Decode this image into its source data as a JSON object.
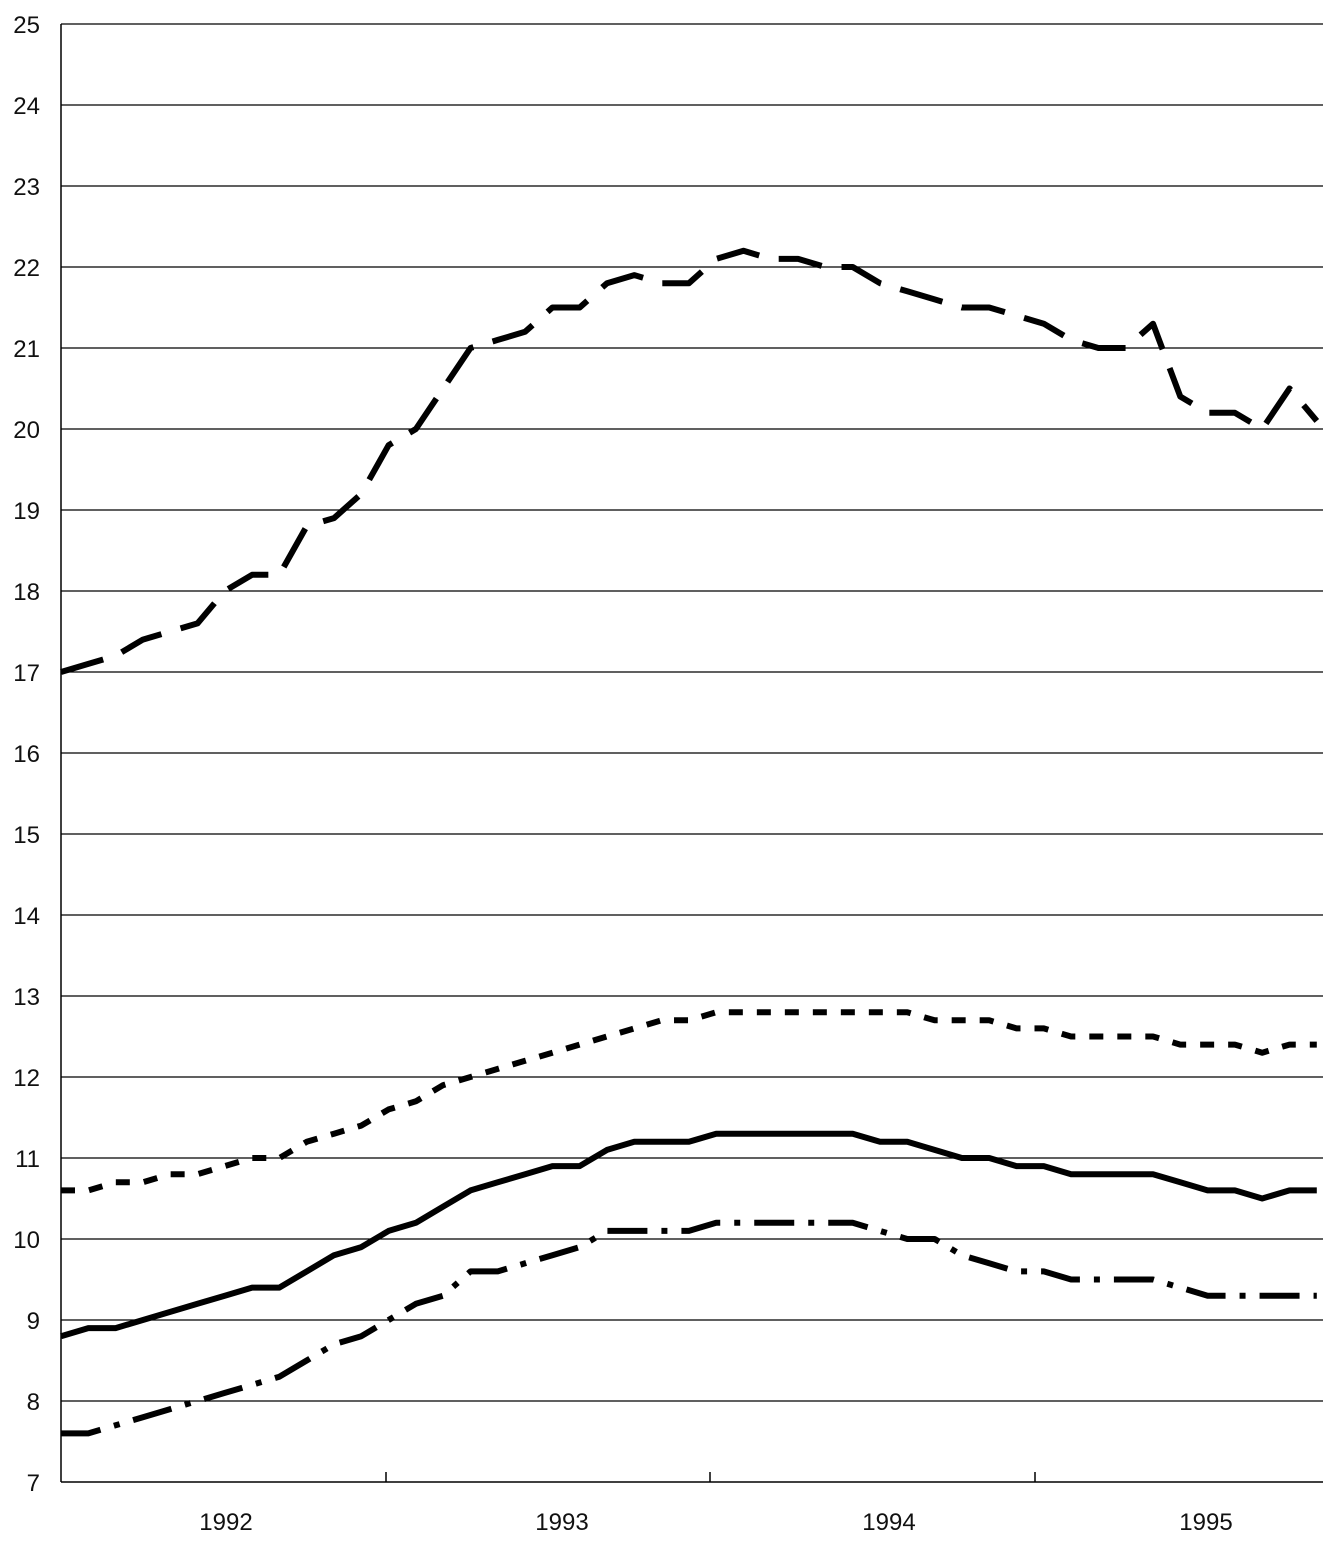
{
  "chart_data": {
    "type": "line",
    "title": "",
    "xlabel": "",
    "ylabel": "",
    "ylim": [
      7,
      25
    ],
    "y_ticks": [
      "7",
      "8",
      "9",
      "10",
      "11",
      "12",
      "13",
      "14",
      "15",
      "16",
      "17",
      "18",
      "19",
      "20",
      "21",
      "22",
      "23",
      "24",
      "25"
    ],
    "x_ticks": [
      "1992",
      "1993",
      "1994",
      "1995"
    ],
    "grid": "horizontal",
    "legend": "none",
    "line_color": "#000000",
    "series": [
      {
        "style": "long-dash",
        "values": [
          17.0,
          17.1,
          17.2,
          17.4,
          17.5,
          17.6,
          18.0,
          18.2,
          18.2,
          18.8,
          18.9,
          19.2,
          19.8,
          20.0,
          20.5,
          21.0,
          21.1,
          21.2,
          21.5,
          21.5,
          21.8,
          21.9,
          21.8,
          21.8,
          22.1,
          22.2,
          22.1,
          22.1,
          22.0,
          22.0,
          21.8,
          21.7,
          21.6,
          21.5,
          21.5,
          21.4,
          21.3,
          21.1,
          21.0,
          21.0,
          21.3,
          20.4,
          20.2,
          20.2,
          20.0,
          20.5,
          20.1
        ]
      },
      {
        "style": "short-dash",
        "values": [
          10.6,
          10.6,
          10.7,
          10.7,
          10.8,
          10.8,
          10.9,
          11.0,
          11.0,
          11.2,
          11.3,
          11.4,
          11.6,
          11.7,
          11.9,
          12.0,
          12.1,
          12.2,
          12.3,
          12.4,
          12.5,
          12.6,
          12.7,
          12.7,
          12.8,
          12.8,
          12.8,
          12.8,
          12.8,
          12.8,
          12.8,
          12.8,
          12.7,
          12.7,
          12.7,
          12.6,
          12.6,
          12.5,
          12.5,
          12.5,
          12.5,
          12.4,
          12.4,
          12.4,
          12.3,
          12.4,
          12.4
        ]
      },
      {
        "style": "solid",
        "values": [
          8.8,
          8.9,
          8.9,
          9.0,
          9.1,
          9.2,
          9.3,
          9.4,
          9.4,
          9.6,
          9.8,
          9.9,
          10.1,
          10.2,
          10.4,
          10.6,
          10.7,
          10.8,
          10.9,
          10.9,
          11.1,
          11.2,
          11.2,
          11.2,
          11.3,
          11.3,
          11.3,
          11.3,
          11.3,
          11.3,
          11.2,
          11.2,
          11.1,
          11.0,
          11.0,
          10.9,
          10.9,
          10.8,
          10.8,
          10.8,
          10.8,
          10.7,
          10.6,
          10.6,
          10.5,
          10.6,
          10.6
        ]
      },
      {
        "style": "dash-dot",
        "values": [
          7.6,
          7.6,
          7.7,
          7.8,
          7.9,
          8.0,
          8.1,
          8.2,
          8.3,
          8.5,
          8.7,
          8.8,
          9.0,
          9.2,
          9.3,
          9.6,
          9.6,
          9.7,
          9.8,
          9.9,
          10.1,
          10.1,
          10.1,
          10.1,
          10.2,
          10.2,
          10.2,
          10.2,
          10.2,
          10.2,
          10.1,
          10.0,
          10.0,
          9.8,
          9.7,
          9.6,
          9.6,
          9.5,
          9.5,
          9.5,
          9.5,
          9.4,
          9.3,
          9.3,
          9.3,
          9.3,
          9.3
        ]
      }
    ]
  }
}
